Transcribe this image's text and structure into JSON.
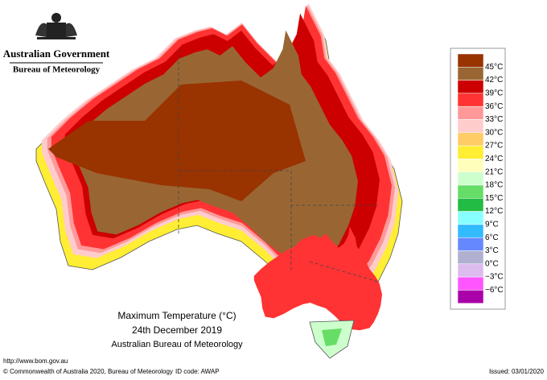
{
  "header": {
    "government": "Australian Government",
    "agency": "Bureau of Meteorology"
  },
  "legend": {
    "labels": [
      "45°C",
      "42°C",
      "39°C",
      "36°C",
      "33°C",
      "30°C",
      "27°C",
      "24°C",
      "21°C",
      "18°C",
      "15°C",
      "12°C",
      "9°C",
      "6°C",
      "3°C",
      "0°C",
      "−3°C",
      "−6°C"
    ],
    "colors": [
      "#993300",
      "#996633",
      "#cc0000",
      "#ff3333",
      "#ff9999",
      "#ffcccc",
      "#ffcc66",
      "#ffee33",
      "#ffffbb",
      "#ccffcc",
      "#66dd66",
      "#22bb44",
      "#88ffff",
      "#33bbff",
      "#6688ff",
      "#b0b0d0",
      "#ddbbee",
      "#ff55ff",
      "#aa00aa"
    ]
  },
  "caption": {
    "title": "Maximum Temperature (°C)",
    "date": "24th December 2019",
    "source": "Australian Bureau of Meteorology"
  },
  "footer": {
    "url": "http://www.bom.gov.au",
    "copyright": "© Commonwealth of Australia 2020, Bureau of Meteorology",
    "id_code": "ID code: AWAP",
    "issued": "Issued: 03/01/2020"
  }
}
